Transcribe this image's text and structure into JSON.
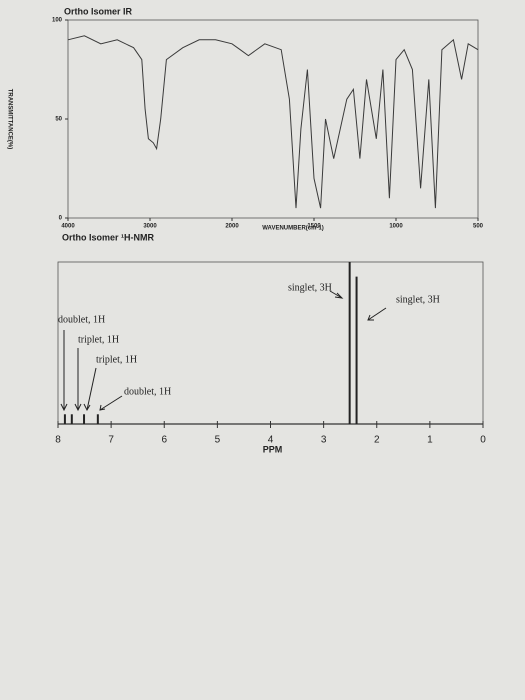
{
  "chart_data": [
    {
      "type": "line",
      "title": "Ortho Isomer IR",
      "xlabel": "WAVENUMBER(cm-1)",
      "ylabel": "TRANSMITTANCE(%)",
      "x": [
        4000,
        3800,
        3600,
        3400,
        3200,
        3100,
        3060,
        3020,
        2960,
        2920,
        2870,
        2800,
        2600,
        2400,
        2200,
        2000,
        1950,
        1900,
        1800,
        1700,
        1650,
        1610,
        1580,
        1540,
        1500,
        1460,
        1430,
        1380,
        1300,
        1260,
        1220,
        1180,
        1120,
        1080,
        1040,
        1000,
        950,
        900,
        850,
        800,
        760,
        720,
        650,
        600,
        560,
        500
      ],
      "values": [
        90,
        92,
        88,
        90,
        86,
        80,
        55,
        40,
        38,
        35,
        50,
        80,
        86,
        90,
        90,
        88,
        85,
        82,
        88,
        85,
        60,
        5,
        45,
        75,
        20,
        5,
        50,
        30,
        60,
        65,
        30,
        70,
        40,
        75,
        10,
        80,
        85,
        75,
        15,
        70,
        5,
        85,
        90,
        70,
        88,
        85
      ],
      "color": "#3a3a3a",
      "xlim": [
        4000,
        500
      ],
      "xticks": [
        4000,
        3000,
        2000,
        1500,
        1000,
        500
      ],
      "ylim": [
        0,
        100
      ],
      "yticks": [
        0,
        50,
        100
      ]
    },
    {
      "type": "stem",
      "title": "Ortho Isomer ¹H-NMR",
      "xlabel": "PPM",
      "x": [
        7.87,
        7.74,
        7.51,
        7.25,
        2.51,
        2.38
      ],
      "values": [
        6,
        6,
        6,
        6,
        100,
        91
      ],
      "color": "#222222",
      "xlim": [
        8,
        0
      ],
      "xticks": [
        8,
        7,
        6,
        5,
        4,
        3,
        2,
        1,
        0
      ],
      "ylim": [
        0,
        100
      ],
      "annotations": [
        "singlet, 3H",
        "singlet, 3H",
        "doublet, 1H",
        "triplet, 1H",
        "triplet, 1H",
        "doublet, 1H"
      ]
    }
  ]
}
